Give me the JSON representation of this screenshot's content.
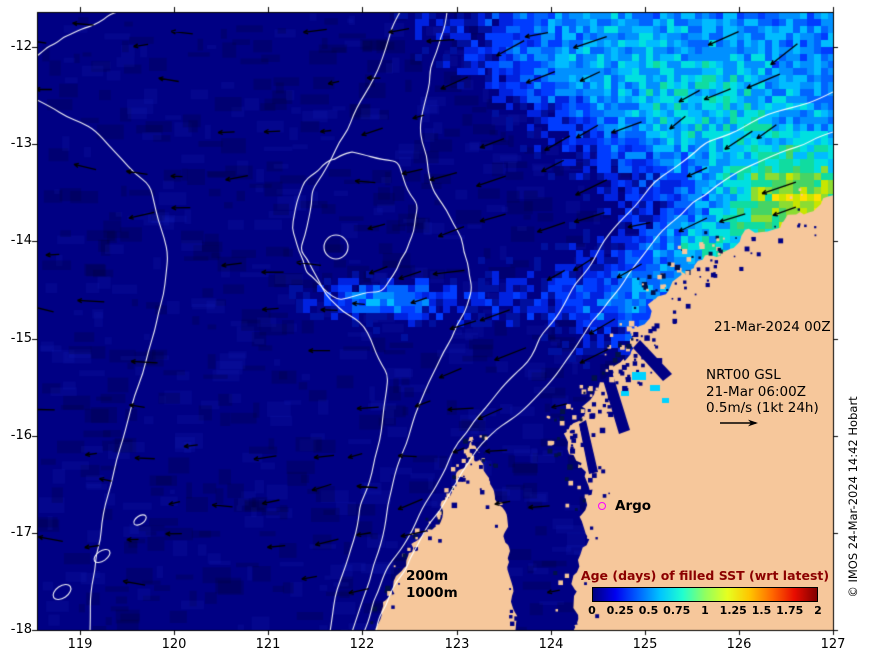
{
  "axes": {
    "x_ticks": [
      "119",
      "120",
      "121",
      "122",
      "123",
      "124",
      "125",
      "126",
      "127"
    ],
    "y_ticks": [
      "-12",
      "-13",
      "-14",
      "-15",
      "-16",
      "-17",
      "-18"
    ]
  },
  "annotations": {
    "analysis_time": "21-Mar-2024 00Z",
    "velocity_legend": {
      "model": "NRT00 GSL",
      "valid_time": "21-Mar 06:00Z",
      "scale": "0.5m/s (1kt 24h)"
    },
    "argo_label": "Argo",
    "isobath_200m": "200m",
    "isobath_1000m": "1000m",
    "credit": "© IMOS 24-Mar-2024 14:42 Hobart"
  },
  "colorbar": {
    "title": "Age (days) of filled SST (wrt latest)",
    "title_color": "#8b0000",
    "ticks": [
      "0",
      "0.25",
      "0.5",
      "0.75",
      "1",
      "1.25",
      "1.5",
      "1.75",
      "2"
    ],
    "stops": [
      "#000080",
      "#0000f0",
      "#0060ff",
      "#00c4ff",
      "#20ffd0",
      "#90ff60",
      "#e6ff20",
      "#ffc400",
      "#ff6800",
      "#e80c00",
      "#800000"
    ]
  },
  "map": {
    "ocean_color": "#000084",
    "land_color": "#f6c79b",
    "contour_color": "#ffffff",
    "arrow_color": "#000000",
    "argo_marker_color": "#ff00ff",
    "shallow_water_color": "#00d2ff",
    "age_palette": [
      "#000f9e",
      "#0022e0",
      "#003cff",
      "#0064ff",
      "#0090ff",
      "#00bcff",
      "#00e0e0",
      "#10dca0",
      "#46d464",
      "#8cdc32",
      "#c8e600",
      "#ffe100",
      "#ffb400"
    ]
  }
}
